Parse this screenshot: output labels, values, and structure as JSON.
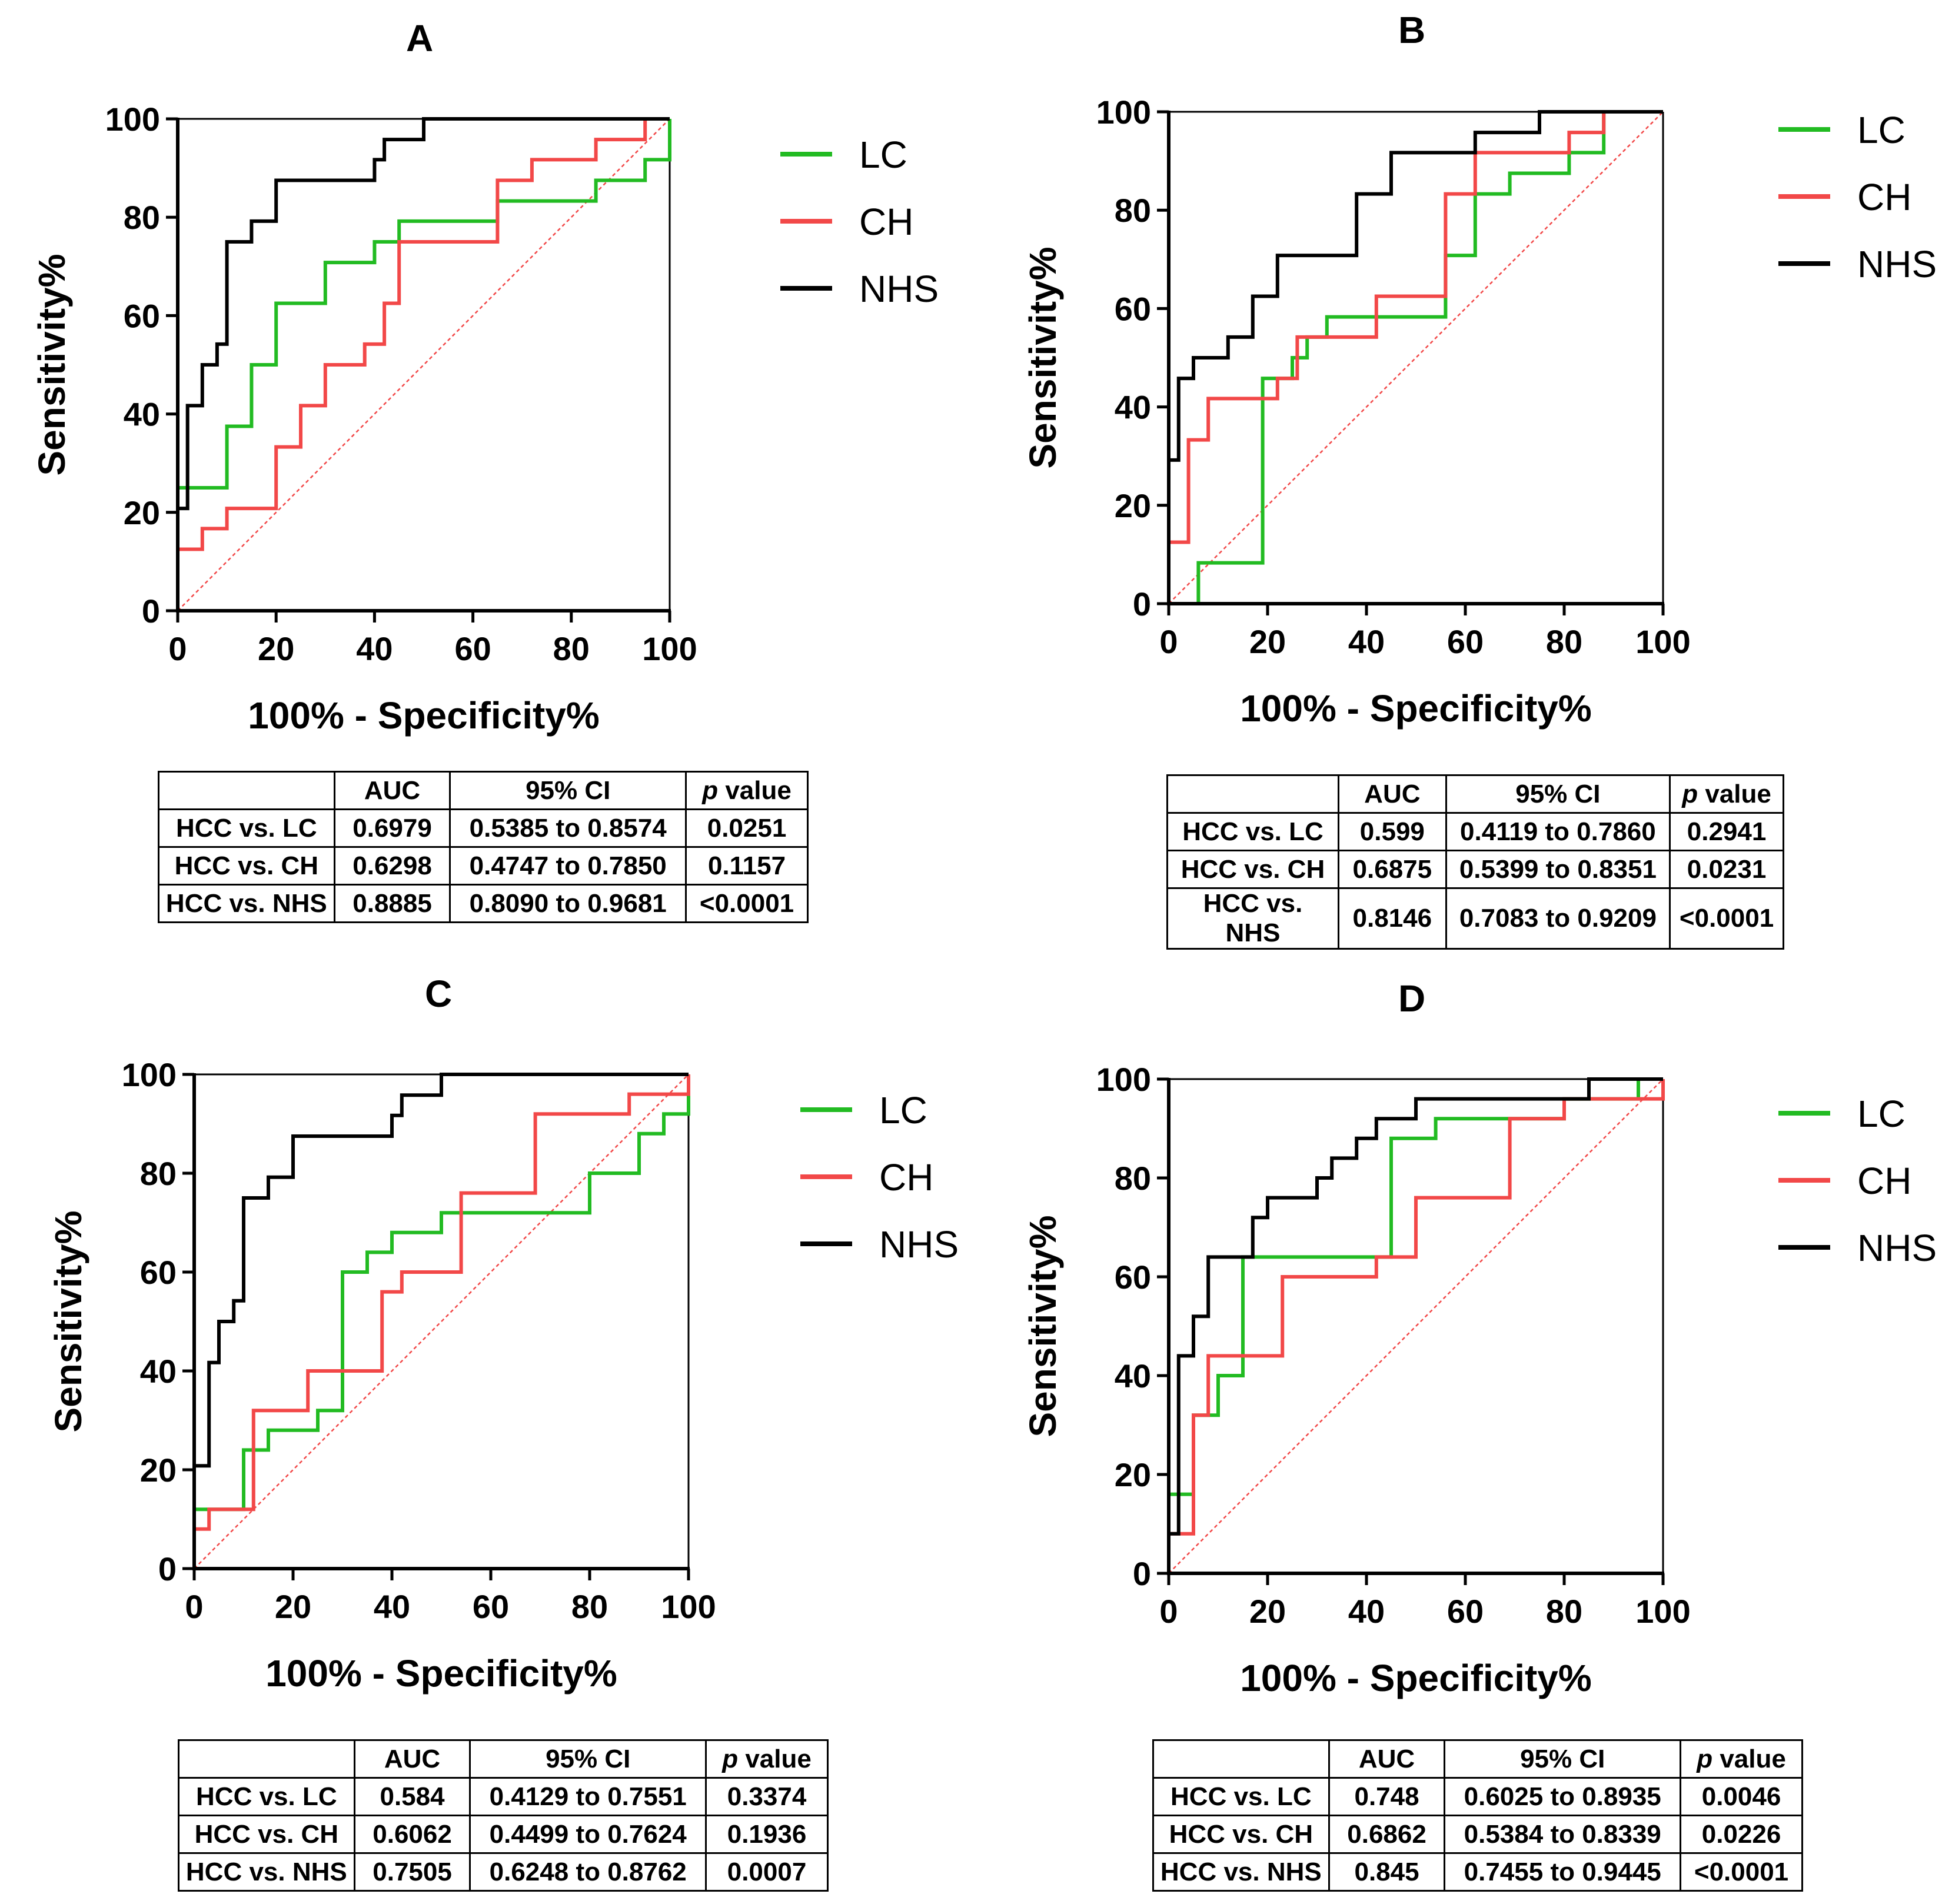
{
  "figure": {
    "legend_names": [
      "LC",
      "CH",
      "NHS"
    ],
    "table_header": [
      "",
      "AUC",
      "95% CI",
      "p value"
    ],
    "p_value_label": {
      "italic_part": "p",
      "rest": "value"
    }
  },
  "colors": {
    "LC": "#22bb22",
    "CH": "#f24848",
    "NHS": "#000000",
    "reference": "#f24848"
  },
  "chart_data": [
    {
      "panel": "A",
      "type": "line",
      "title": "A",
      "xlabel": "100% - Specificity%",
      "ylabel": "Sensitivity%",
      "xlim": [
        0,
        100
      ],
      "ylim": [
        0,
        100
      ],
      "xticks": [
        "0",
        "20",
        "40",
        "60",
        "80",
        "100"
      ],
      "yticks": [
        "0",
        "20",
        "40",
        "60",
        "80",
        "100"
      ],
      "series": [
        {
          "name": "LC",
          "x": [
            0,
            0,
            0,
            10,
            10,
            15,
            15,
            20,
            20,
            30,
            30,
            40,
            40,
            45,
            45,
            62,
            62,
            65,
            65,
            85,
            85,
            95,
            95,
            100,
            100
          ],
          "y": [
            0,
            12.5,
            25,
            25,
            37.5,
            37.5,
            50,
            50,
            62.5,
            62.5,
            70.8,
            70.8,
            75,
            75,
            79.2,
            79.2,
            79.2,
            79.2,
            83.3,
            83.3,
            87.5,
            87.5,
            91.7,
            91.7,
            100
          ]
        },
        {
          "name": "CH",
          "x": [
            0,
            0,
            5,
            5,
            10,
            10,
            15,
            15,
            20,
            20,
            25,
            25,
            30,
            30,
            38,
            38,
            42,
            42,
            45,
            45,
            60,
            60,
            65,
            65,
            72,
            72,
            85,
            85,
            95,
            95,
            100
          ],
          "y": [
            0,
            12.5,
            12.5,
            16.7,
            16.7,
            20.8,
            20.8,
            20.8,
            20.8,
            33.3,
            33.3,
            41.7,
            41.7,
            50,
            50,
            54.2,
            54.2,
            62.5,
            62.5,
            75,
            75,
            75,
            75,
            87.5,
            87.5,
            91.7,
            91.7,
            95.8,
            95.8,
            100,
            100
          ]
        },
        {
          "name": "NHS",
          "x": [
            0,
            0,
            2,
            2,
            5,
            5,
            8,
            8,
            10,
            10,
            15,
            15,
            20,
            20,
            40,
            40,
            42,
            42,
            45,
            45,
            50,
            50,
            100
          ],
          "y": [
            0,
            20.8,
            20.8,
            41.7,
            41.7,
            50,
            50,
            54.2,
            54.2,
            75,
            75,
            79.2,
            79.2,
            87.5,
            87.5,
            91.7,
            91.7,
            95.8,
            95.8,
            95.8,
            95.8,
            100,
            100
          ]
        }
      ],
      "table": [
        [
          "HCC vs. LC",
          "0.6979",
          "0.5385 to 0.8574",
          "0.0251"
        ],
        [
          "HCC vs. CH",
          "0.6298",
          "0.4747 to 0.7850",
          "0.1157"
        ],
        [
          "HCC vs. NHS",
          "0.8885",
          "0.8090 to 0.9681",
          "<0.0001"
        ]
      ]
    },
    {
      "panel": "B",
      "type": "line",
      "title": "B",
      "xlabel": "100% - Specificity%",
      "ylabel": "Sensitivity%",
      "xlim": [
        0,
        100
      ],
      "ylim": [
        0,
        100
      ],
      "xticks": [
        "0",
        "20",
        "40",
        "60",
        "80",
        "100"
      ],
      "yticks": [
        "0",
        "20",
        "40",
        "60",
        "80",
        "100"
      ],
      "series": [
        {
          "name": "LC",
          "x": [
            0,
            6,
            6,
            19,
            19,
            25,
            25,
            28,
            28,
            32,
            32,
            44,
            44,
            56,
            56,
            62,
            62,
            69,
            69,
            81,
            81,
            88,
            88,
            100
          ],
          "y": [
            0,
            0,
            8.3,
            8.3,
            45.8,
            45.8,
            50,
            50,
            54.2,
            54.2,
            58.3,
            58.3,
            58.3,
            58.3,
            70.8,
            70.8,
            83.3,
            83.3,
            87.5,
            87.5,
            91.7,
            91.7,
            100,
            100
          ]
        },
        {
          "name": "CH",
          "x": [
            0,
            0,
            4,
            4,
            8,
            8,
            22,
            22,
            26,
            26,
            28,
            28,
            42,
            42,
            56,
            56,
            62,
            62,
            81,
            81,
            88,
            88,
            100
          ],
          "y": [
            0,
            12.5,
            12.5,
            33.3,
            33.3,
            41.7,
            41.7,
            45.8,
            45.8,
            54.2,
            54.2,
            54.2,
            54.2,
            62.5,
            62.5,
            83.3,
            83.3,
            91.7,
            91.7,
            95.8,
            95.8,
            100,
            100
          ]
        },
        {
          "name": "NHS",
          "x": [
            0,
            0,
            2,
            2,
            5,
            5,
            12,
            12,
            17,
            17,
            22,
            22,
            38,
            38,
            45,
            45,
            62,
            62,
            75,
            75,
            100
          ],
          "y": [
            0,
            29.2,
            29.2,
            45.8,
            45.8,
            50,
            50,
            54.2,
            54.2,
            62.5,
            62.5,
            70.8,
            70.8,
            83.3,
            83.3,
            91.7,
            91.7,
            95.8,
            95.8,
            100,
            100
          ]
        }
      ],
      "table": [
        [
          "HCC vs. LC",
          "0.599",
          "0.4119 to 0.7860",
          "0.2941"
        ],
        [
          "HCC vs. CH",
          "0.6875",
          "0.5399 to 0.8351",
          "0.0231"
        ],
        [
          "HCC vs. NHS",
          "0.8146",
          "0.7083 to 0.9209",
          "<0.0001"
        ]
      ]
    },
    {
      "panel": "C",
      "type": "line",
      "title": "C",
      "xlabel": "100% - Specificity%",
      "ylabel": "Sensitivity%",
      "xlim": [
        0,
        100
      ],
      "ylim": [
        0,
        100
      ],
      "xticks": [
        "0",
        "20",
        "40",
        "60",
        "80",
        "100"
      ],
      "yticks": [
        "0",
        "20",
        "40",
        "60",
        "80",
        "100"
      ],
      "series": [
        {
          "name": "LC",
          "x": [
            0,
            0,
            3,
            3,
            10,
            10,
            15,
            15,
            25,
            25,
            30,
            30,
            35,
            35,
            40,
            40,
            50,
            50,
            54,
            54,
            80,
            80,
            90,
            90,
            95,
            95,
            100,
            100
          ],
          "y": [
            0,
            12,
            12,
            12,
            12,
            24,
            24,
            28,
            28,
            32,
            32,
            60,
            60,
            64,
            64,
            68,
            68,
            72,
            72,
            72,
            72,
            80,
            80,
            88,
            88,
            92,
            92,
            100
          ]
        },
        {
          "name": "CH",
          "x": [
            0,
            0,
            3,
            3,
            5,
            5,
            12,
            12,
            23,
            23,
            38,
            38,
            42,
            42,
            54,
            54,
            69,
            69,
            88,
            88,
            100,
            100
          ],
          "y": [
            0,
            8,
            8,
            12,
            12,
            12,
            12,
            32,
            32,
            40,
            40,
            56,
            56,
            60,
            60,
            76,
            76,
            92,
            92,
            96,
            96,
            100
          ]
        },
        {
          "name": "NHS",
          "x": [
            0,
            0,
            3,
            3,
            5,
            5,
            8,
            8,
            10,
            10,
            15,
            15,
            20,
            20,
            40,
            40,
            42,
            42,
            50,
            50,
            100
          ],
          "y": [
            0,
            20.8,
            20.8,
            41.7,
            41.7,
            50,
            50,
            54.2,
            54.2,
            75,
            75,
            79.2,
            79.2,
            87.5,
            87.5,
            91.7,
            91.7,
            95.8,
            95.8,
            100,
            100
          ]
        }
      ],
      "table": [
        [
          "HCC vs. LC",
          "0.584",
          "0.4129 to 0.7551",
          "0.3374"
        ],
        [
          "HCC vs. CH",
          "0.6062",
          "0.4499 to 0.7624",
          "0.1936"
        ],
        [
          "HCC vs. NHS",
          "0.7505",
          "0.6248 to 0.8762",
          "0.0007"
        ]
      ]
    },
    {
      "panel": "D",
      "type": "line",
      "title": "D",
      "xlabel": "100% - Specificity%",
      "ylabel": "Sensitivity%",
      "xlim": [
        0,
        100
      ],
      "ylim": [
        0,
        100
      ],
      "xticks": [
        "0",
        "20",
        "40",
        "60",
        "80",
        "100"
      ],
      "yticks": [
        "0",
        "20",
        "40",
        "60",
        "80",
        "100"
      ],
      "series": [
        {
          "name": "LC",
          "x": [
            0,
            0,
            4,
            4,
            5,
            5,
            10,
            10,
            15,
            15,
            45,
            45,
            54,
            54,
            80,
            80,
            95,
            95,
            100
          ],
          "y": [
            0,
            16,
            16,
            16,
            16,
            32,
            32,
            40,
            40,
            64,
            64,
            88,
            88,
            92,
            92,
            96,
            96,
            100,
            100
          ]
        },
        {
          "name": "CH",
          "x": [
            0,
            0,
            5,
            5,
            8,
            8,
            23,
            23,
            42,
            42,
            50,
            50,
            69,
            69,
            80,
            80,
            100,
            100
          ],
          "y": [
            0,
            8,
            8,
            32,
            32,
            44,
            44,
            60,
            60,
            64,
            64,
            76,
            76,
            92,
            92,
            96,
            96,
            100
          ]
        },
        {
          "name": "NHS",
          "x": [
            0,
            0,
            2,
            2,
            5,
            5,
            8,
            8,
            17,
            17,
            20,
            20,
            30,
            30,
            33,
            33,
            38,
            38,
            40,
            40,
            42,
            42,
            50,
            50,
            85,
            85,
            100
          ],
          "y": [
            0,
            8,
            8,
            44,
            44,
            52,
            52,
            64,
            64,
            72,
            72,
            76,
            76,
            80,
            80,
            84,
            84,
            88,
            88,
            88,
            88,
            92,
            92,
            96,
            96,
            100,
            100
          ]
        }
      ],
      "table": [
        [
          "HCC vs. LC",
          "0.748",
          "0.6025 to 0.8935",
          "0.0046"
        ],
        [
          "HCC vs. CH",
          "0.6862",
          "0.5384 to 0.8339",
          "0.0226"
        ],
        [
          "HCC vs. NHS",
          "0.845",
          "0.7455 to 0.9445",
          "<0.0001"
        ]
      ]
    }
  ]
}
